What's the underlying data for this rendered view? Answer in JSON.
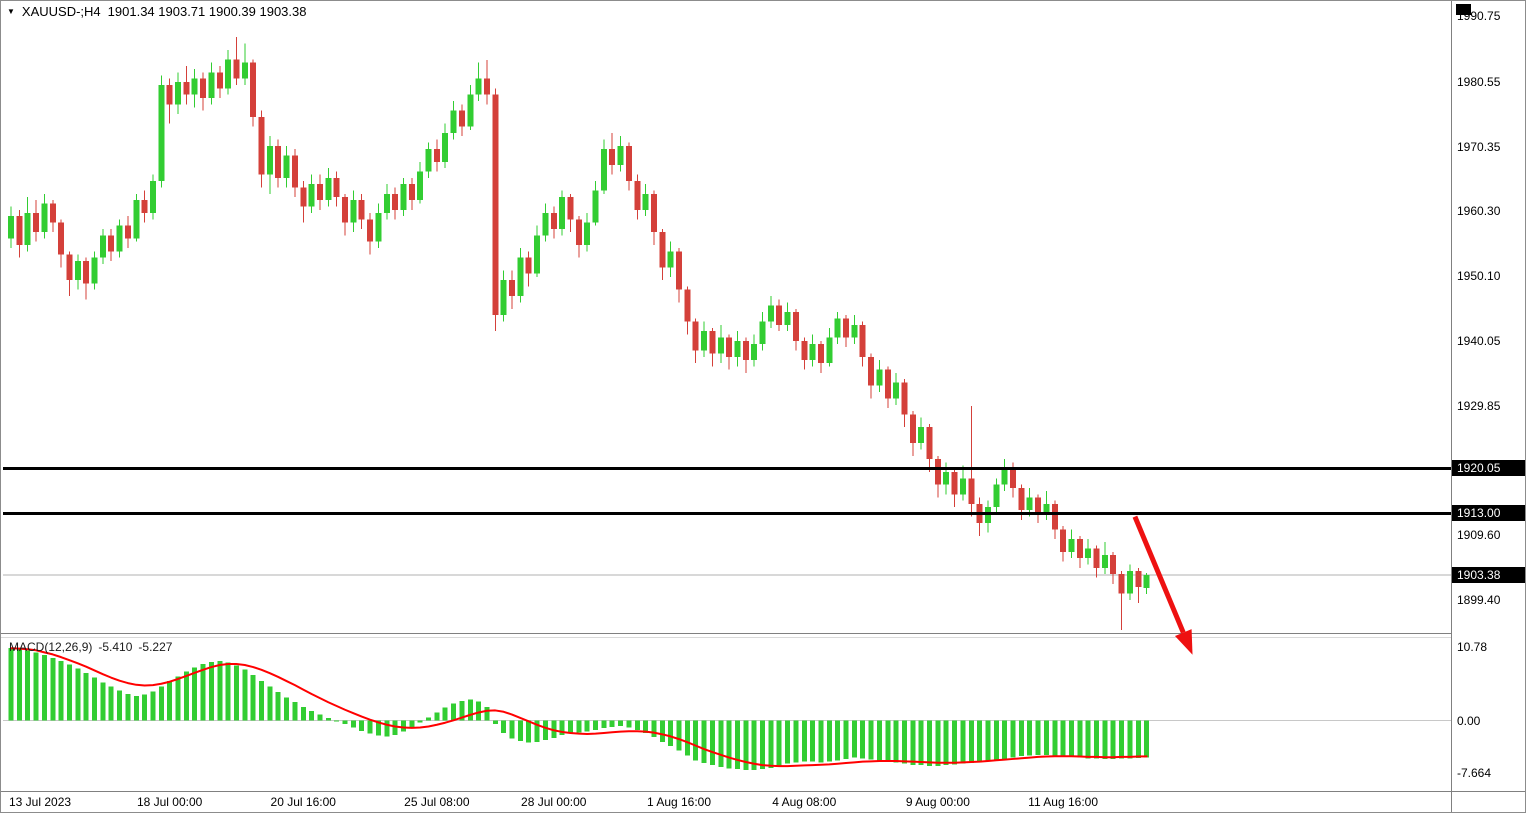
{
  "window": {
    "title_overlay": {
      "marker_icon": "▼",
      "symbol": "XAUUSD-;H4",
      "ohlc": "1901.34 1903.71 1900.39 1903.38"
    },
    "colors": {
      "background": "#ffffff",
      "bull": "#32cd32",
      "bear": "#d4403a",
      "macd_hist": "#32cd32",
      "macd_signal": "#ff0000",
      "hline": "#000000",
      "arrow": "#ee1111",
      "tag_bg": "#000000",
      "tag_text": "#ffffff",
      "current_price_line": "#b0b0b0",
      "zero_line": "#c8c8c8",
      "separator": "#808080",
      "splitter": "#d9d9d9"
    }
  },
  "indicator_label": {
    "name": "MACD(12,26,9)",
    "value_main": "-5.410",
    "value_signal": "-5.227"
  },
  "chart_data": {
    "type": "candlestick",
    "symbol": "XAUUSD",
    "timeframe": "H4",
    "last_ohlc": {
      "open": 1901.34,
      "high": 1903.71,
      "low": 1900.39,
      "close": 1903.38
    },
    "current_price": 1903.38,
    "horizontal_lines": [
      1920.05,
      1913.0
    ],
    "price_axis_range": [
      1894.3,
      1991.9
    ],
    "macd_axis_range": [
      -10.0,
      12.1
    ],
    "price_axis": [
      {
        "label": "1990.75",
        "value": 1990.75,
        "tag": false
      },
      {
        "label": "1980.55",
        "value": 1980.55,
        "tag": false
      },
      {
        "label": "1970.35",
        "value": 1970.35,
        "tag": false
      },
      {
        "label": "1960.30",
        "value": 1960.3,
        "tag": false
      },
      {
        "label": "1950.10",
        "value": 1950.1,
        "tag": false
      },
      {
        "label": "1940.05",
        "value": 1940.05,
        "tag": false
      },
      {
        "label": "1929.85",
        "value": 1929.85,
        "tag": false
      },
      {
        "label": "1920.05",
        "value": 1920.05,
        "tag": true
      },
      {
        "label": "1913.00",
        "value": 1913.0,
        "tag": true
      },
      {
        "label": "1909.60",
        "value": 1909.6,
        "tag": false
      },
      {
        "label": "1903.38",
        "value": 1903.38,
        "tag": true
      },
      {
        "label": "1899.40",
        "value": 1899.4,
        "tag": false
      }
    ],
    "macd_axis": [
      {
        "label": "10.78",
        "value": 10.78
      },
      {
        "label": "0.00",
        "value": 0
      },
      {
        "label": "-7.664",
        "value": -7.664
      }
    ],
    "time_axis": [
      {
        "label": "13 Jul 2023",
        "index": 0
      },
      {
        "label": "18 Jul 00:00",
        "index": 19
      },
      {
        "label": "20 Jul 16:00",
        "index": 35
      },
      {
        "label": "25 Jul 08:00",
        "index": 51
      },
      {
        "label": "28 Jul 00:00",
        "index": 65
      },
      {
        "label": "1 Aug 16:00",
        "index": 80
      },
      {
        "label": "4 Aug 08:00",
        "index": 95
      },
      {
        "label": "9 Aug 00:00",
        "index": 111
      },
      {
        "label": "11 Aug 16:00",
        "index": 126
      }
    ],
    "candles": [
      [
        1956,
        1961,
        1954.5,
        1959.5
      ],
      [
        1959.5,
        1960.5,
        1953,
        1955
      ],
      [
        1955,
        1962.5,
        1954,
        1960
      ],
      [
        1960,
        1962,
        1955.5,
        1957
      ],
      [
        1957,
        1963,
        1956,
        1961.5
      ],
      [
        1961.5,
        1962,
        1957,
        1958.5
      ],
      [
        1958.5,
        1959,
        1951.5,
        1953.5
      ],
      [
        1953.5,
        1954,
        1947,
        1949.5
      ],
      [
        1949.5,
        1953.5,
        1948,
        1952.5
      ],
      [
        1952.5,
        1953,
        1946.5,
        1949
      ],
      [
        1949,
        1954,
        1948,
        1953
      ],
      [
        1953,
        1957.5,
        1952,
        1956.5
      ],
      [
        1956.5,
        1957.5,
        1952.5,
        1954
      ],
      [
        1954,
        1959,
        1953,
        1958
      ],
      [
        1958,
        1959.5,
        1954.5,
        1956
      ],
      [
        1956,
        1963,
        1955.5,
        1962
      ],
      [
        1962,
        1963.5,
        1958.5,
        1960
      ],
      [
        1960,
        1966,
        1959,
        1965
      ],
      [
        1965,
        1981.5,
        1964,
        1980
      ],
      [
        1980,
        1981,
        1974,
        1977
      ],
      [
        1977,
        1982,
        1975.5,
        1980.5
      ],
      [
        1980.5,
        1983,
        1977,
        1978.5
      ],
      [
        1978.5,
        1982.5,
        1976.5,
        1981
      ],
      [
        1981,
        1982,
        1976,
        1978
      ],
      [
        1978,
        1983.5,
        1977,
        1982
      ],
      [
        1982,
        1983,
        1978,
        1979.5
      ],
      [
        1979.5,
        1985.5,
        1978.5,
        1984
      ],
      [
        1984,
        1987.5,
        1980,
        1981
      ],
      [
        1981,
        1986.5,
        1980,
        1983.5
      ],
      [
        1983.5,
        1984,
        1973.5,
        1975
      ],
      [
        1975,
        1976,
        1964,
        1966
      ],
      [
        1966,
        1972,
        1963,
        1970.5
      ],
      [
        1970.5,
        1971.5,
        1964,
        1965.5
      ],
      [
        1965.5,
        1970.5,
        1964,
        1969
      ],
      [
        1969,
        1970,
        1962.5,
        1964
      ],
      [
        1964,
        1965,
        1958.5,
        1961
      ],
      [
        1961,
        1966,
        1960,
        1964.5
      ],
      [
        1964.5,
        1966,
        1960.5,
        1962
      ],
      [
        1962,
        1967,
        1961,
        1965.5
      ],
      [
        1965.5,
        1966.5,
        1961,
        1962.5
      ],
      [
        1962.5,
        1963,
        1956.5,
        1958.5
      ],
      [
        1958.5,
        1963.5,
        1957,
        1962
      ],
      [
        1962,
        1963,
        1957.5,
        1959
      ],
      [
        1959,
        1960,
        1953.5,
        1955.5
      ],
      [
        1955.5,
        1961.5,
        1954.5,
        1960
      ],
      [
        1960,
        1964.5,
        1959,
        1963
      ],
      [
        1963,
        1964,
        1959,
        1960.5
      ],
      [
        1960.5,
        1965.5,
        1959.5,
        1964.5
      ],
      [
        1964.5,
        1965.5,
        1960.5,
        1962
      ],
      [
        1962,
        1968,
        1961.5,
        1966.5
      ],
      [
        1966.5,
        1971,
        1965.5,
        1970
      ],
      [
        1970,
        1971.5,
        1966.5,
        1968
      ],
      [
        1968,
        1974,
        1967,
        1972.5
      ],
      [
        1972.5,
        1977.5,
        1971.5,
        1976
      ],
      [
        1976,
        1977,
        1972,
        1973.5
      ],
      [
        1973.5,
        1980,
        1973,
        1978.5
      ],
      [
        1978.5,
        1983.5,
        1977.5,
        1981
      ],
      [
        1981,
        1983.9,
        1977,
        1978.5
      ],
      [
        1978.5,
        1979.5,
        1941.5,
        1944
      ],
      [
        1944,
        1951,
        1943,
        1949.5
      ],
      [
        1949.5,
        1951,
        1945,
        1947
      ],
      [
        1947,
        1954.5,
        1946,
        1953
      ],
      [
        1953,
        1954,
        1948.5,
        1950.5
      ],
      [
        1950.5,
        1958,
        1950,
        1956.5
      ],
      [
        1956.5,
        1961.5,
        1955.5,
        1960
      ],
      [
        1960,
        1961,
        1956,
        1957.5
      ],
      [
        1957.5,
        1963.5,
        1956.5,
        1962.5
      ],
      [
        1962.5,
        1963,
        1957,
        1959
      ],
      [
        1959,
        1959.5,
        1953,
        1955
      ],
      [
        1955,
        1960,
        1954,
        1958.5
      ],
      [
        1958.5,
        1965,
        1958,
        1963.5
      ],
      [
        1963.5,
        1971.5,
        1963,
        1970
      ],
      [
        1970,
        1972.5,
        1966,
        1967.5
      ],
      [
        1967.5,
        1972,
        1966.5,
        1970.5
      ],
      [
        1970.5,
        1971,
        1963.5,
        1965
      ],
      [
        1965,
        1966,
        1959,
        1960.5
      ],
      [
        1960.5,
        1964.5,
        1959.5,
        1963
      ],
      [
        1963,
        1963.5,
        1955,
        1957
      ],
      [
        1957,
        1957.5,
        1949.5,
        1951.5
      ],
      [
        1951.5,
        1955.5,
        1950,
        1954
      ],
      [
        1954,
        1954.5,
        1946,
        1948
      ],
      [
        1948,
        1948.5,
        1941,
        1943
      ],
      [
        1943,
        1943.5,
        1936.5,
        1938.5
      ],
      [
        1938.5,
        1943,
        1937.5,
        1941.5
      ],
      [
        1941.5,
        1942,
        1936,
        1938
      ],
      [
        1938,
        1942.5,
        1936.5,
        1940.5
      ],
      [
        1940.5,
        1941,
        1935.5,
        1937.5
      ],
      [
        1937.5,
        1941.5,
        1936,
        1940
      ],
      [
        1940,
        1940.5,
        1935,
        1937
      ],
      [
        1937,
        1941,
        1936,
        1939.5
      ],
      [
        1939.5,
        1944.5,
        1938.5,
        1943
      ],
      [
        1943,
        1947,
        1942,
        1945.5
      ],
      [
        1945.5,
        1946.5,
        1941.5,
        1942.5
      ],
      [
        1942.5,
        1946,
        1941.5,
        1944.5
      ],
      [
        1944.5,
        1945,
        1938.5,
        1940
      ],
      [
        1940,
        1940.5,
        1935.5,
        1937
      ],
      [
        1937,
        1941,
        1936,
        1939.5
      ],
      [
        1939.5,
        1940,
        1935,
        1936.5
      ],
      [
        1936.5,
        1942,
        1936,
        1940.5
      ],
      [
        1940.5,
        1944.5,
        1939.5,
        1943.5
      ],
      [
        1943.5,
        1944,
        1939,
        1940.5
      ],
      [
        1940.5,
        1944,
        1939.5,
        1942.5
      ],
      [
        1942.5,
        1943,
        1936,
        1937.5
      ],
      [
        1937.5,
        1938,
        1931,
        1933
      ],
      [
        1933,
        1937,
        1932,
        1935.5
      ],
      [
        1935.5,
        1936,
        1929.5,
        1931
      ],
      [
        1931,
        1935,
        1930,
        1933.5
      ],
      [
        1933.5,
        1934,
        1926.5,
        1928.5
      ],
      [
        1928.5,
        1929,
        1922,
        1924
      ],
      [
        1924,
        1928,
        1923,
        1926.5
      ],
      [
        1926.5,
        1927,
        1919.5,
        1921.5
      ],
      [
        1921.5,
        1922,
        1915.5,
        1917.5
      ],
      [
        1917.5,
        1921,
        1916,
        1919.5
      ],
      [
        1919.5,
        1920,
        1914,
        1916
      ],
      [
        1916,
        1920.5,
        1915,
        1918.5
      ],
      [
        1918.5,
        1929.8,
        1912.5,
        1914.5
      ],
      [
        1914.5,
        1915.5,
        1909.5,
        1911.5
      ],
      [
        1911.5,
        1915,
        1910,
        1914
      ],
      [
        1914,
        1918.5,
        1913,
        1917.5
      ],
      [
        1917.5,
        1921.5,
        1916.5,
        1920
      ],
      [
        1920,
        1921,
        1915.5,
        1917
      ],
      [
        1917,
        1917.5,
        1912,
        1913.5
      ],
      [
        1913.5,
        1917,
        1912.5,
        1915.5
      ],
      [
        1915.5,
        1916,
        1911.5,
        1913
      ],
      [
        1913,
        1916.5,
        1912,
        1914.5
      ],
      [
        1914.5,
        1915,
        1909,
        1910.5
      ],
      [
        1910.5,
        1911,
        1905.5,
        1907
      ],
      [
        1907,
        1910.5,
        1906,
        1909
      ],
      [
        1909,
        1909.5,
        1904.5,
        1906
      ],
      [
        1906,
        1909,
        1905,
        1907.5
      ],
      [
        1907.5,
        1908,
        1903,
        1904.5
      ],
      [
        1904.5,
        1908.5,
        1903.5,
        1906.5
      ],
      [
        1906.5,
        1907,
        1902,
        1903.5
      ],
      [
        1903.5,
        1904,
        1894.8,
        1900.5
      ],
      [
        1900.5,
        1905,
        1899.5,
        1904
      ],
      [
        1904,
        1904.5,
        1899,
        1901.5
      ],
      [
        1901.34,
        1903.71,
        1900.39,
        1903.38
      ]
    ],
    "macd": {
      "histogram": [
        10.6,
        10.5,
        10.3,
        10.0,
        9.6,
        9.2,
        8.7,
        8.2,
        7.6,
        7.0,
        6.3,
        5.6,
        5.0,
        4.4,
        3.9,
        3.6,
        3.8,
        4.3,
        5.0,
        5.8,
        6.5,
        7.2,
        7.8,
        8.3,
        8.6,
        8.7,
        8.5,
        8.1,
        7.5,
        6.7,
        5.8,
        5.0,
        4.2,
        3.4,
        2.7,
        2.0,
        1.4,
        0.9,
        0.4,
        0.0,
        -0.5,
        -1.0,
        -1.5,
        -1.9,
        -2.2,
        -2.3,
        -2.1,
        -1.6,
        -1.0,
        -0.3,
        0.5,
        1.2,
        1.9,
        2.5,
        2.9,
        3.1,
        2.8,
        2.0,
        -0.5,
        -1.8,
        -2.6,
        -3.0,
        -3.2,
        -3.1,
        -2.8,
        -2.5,
        -2.1,
        -1.8,
        -1.7,
        -1.6,
        -1.4,
        -1.1,
        -0.9,
        -0.8,
        -1.0,
        -1.4,
        -1.8,
        -2.4,
        -3.1,
        -3.7,
        -4.4,
        -5.1,
        -5.8,
        -6.2,
        -6.5,
        -6.8,
        -7.0,
        -7.1,
        -7.2,
        -7.2,
        -7.1,
        -6.9,
        -6.6,
        -6.3,
        -6.1,
        -6.0,
        -6.0,
        -6.1,
        -6.0,
        -5.8,
        -5.6,
        -5.4,
        -5.5,
        -5.7,
        -5.8,
        -6.0,
        -6.1,
        -6.3,
        -6.5,
        -6.5,
        -6.6,
        -6.6,
        -6.5,
        -6.4,
        -6.3,
        -6.2,
        -6.1,
        -6.0,
        -5.8,
        -5.6,
        -5.4,
        -5.2,
        -5.1,
        -5.0,
        -5.0,
        -5.1,
        -5.2,
        -5.3,
        -5.4,
        -5.5,
        -5.5,
        -5.6,
        -5.6,
        -5.5,
        -5.5,
        -5.45,
        -5.41
      ],
      "signal": [
        10.6,
        10.55,
        10.45,
        10.3,
        10.0,
        9.7,
        9.3,
        8.85,
        8.4,
        7.9,
        7.35,
        6.8,
        6.3,
        5.85,
        5.5,
        5.25,
        5.15,
        5.2,
        5.4,
        5.7,
        6.1,
        6.55,
        7.0,
        7.45,
        7.85,
        8.15,
        8.3,
        8.3,
        8.15,
        7.85,
        7.45,
        6.95,
        6.4,
        5.8,
        5.2,
        4.55,
        3.9,
        3.3,
        2.7,
        2.15,
        1.6,
        1.1,
        0.6,
        0.15,
        -0.25,
        -0.6,
        -0.85,
        -1.0,
        -1.05,
        -1.0,
        -0.85,
        -0.6,
        -0.3,
        0.05,
        0.45,
        0.85,
        1.2,
        1.45,
        1.5,
        1.3,
        0.9,
        0.4,
        -0.1,
        -0.6,
        -1.05,
        -1.4,
        -1.65,
        -1.8,
        -1.9,
        -1.95,
        -1.9,
        -1.8,
        -1.7,
        -1.6,
        -1.55,
        -1.55,
        -1.6,
        -1.75,
        -2.0,
        -2.3,
        -2.7,
        -3.15,
        -3.65,
        -4.15,
        -4.6,
        -5.0,
        -5.4,
        -5.75,
        -6.05,
        -6.3,
        -6.5,
        -6.6,
        -6.65,
        -6.65,
        -6.6,
        -6.55,
        -6.5,
        -6.45,
        -6.4,
        -6.3,
        -6.2,
        -6.1,
        -6.0,
        -5.95,
        -5.9,
        -5.9,
        -5.9,
        -5.95,
        -6.0,
        -6.05,
        -6.1,
        -6.15,
        -6.15,
        -6.15,
        -6.1,
        -6.05,
        -6.0,
        -5.9,
        -5.8,
        -5.7,
        -5.6,
        -5.5,
        -5.4,
        -5.3,
        -5.25,
        -5.2,
        -5.2,
        -5.2,
        -5.25,
        -5.3,
        -5.3,
        -5.35,
        -5.35,
        -5.3,
        -5.3,
        -5.25,
        -5.227
      ]
    },
    "annotation_arrow": {
      "from": {
        "index": 134.6,
        "price": 1912.5
      },
      "to": {
        "index": 141.5,
        "price": 1890.9
      }
    }
  }
}
